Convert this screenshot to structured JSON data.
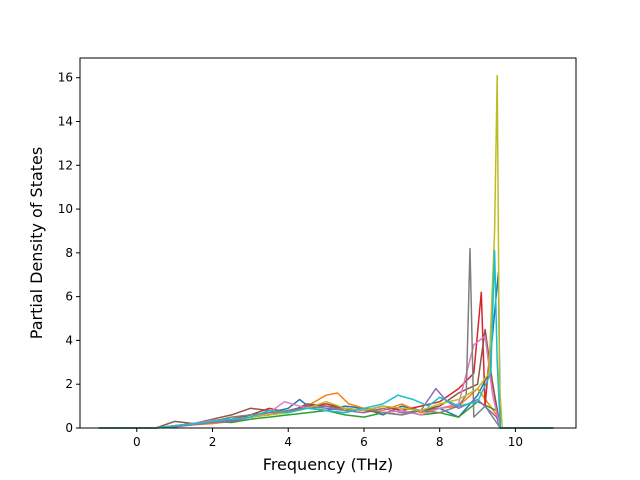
{
  "chart_data": {
    "type": "line",
    "title": "",
    "xlabel": "Frequency (THz)",
    "ylabel": "Partial Density of States",
    "xlim": [
      -1.5,
      11.6
    ],
    "ylim": [
      0,
      16.9
    ],
    "xticks": [
      0,
      2,
      4,
      6,
      8,
      10
    ],
    "yticks": [
      0,
      2,
      4,
      6,
      8,
      10,
      12,
      14,
      16
    ],
    "grid": false,
    "legend": "none",
    "series": [
      {
        "color": "#1f77b4",
        "x": [
          -1,
          0.5,
          1,
          1.5,
          2,
          2.5,
          3,
          3.5,
          4,
          4.3,
          4.6,
          5,
          5.5,
          6,
          6.5,
          7,
          7.5,
          8,
          8.5,
          9,
          9.3,
          9.55,
          9.6,
          11
        ],
        "y": [
          0,
          0,
          0.1,
          0.2,
          0.3,
          0.35,
          0.6,
          0.7,
          0.9,
          1.3,
          0.9,
          0.8,
          1.0,
          0.9,
          0.6,
          1.0,
          0.8,
          0.9,
          0.5,
          1.5,
          2.5,
          7.1,
          0,
          0
        ]
      },
      {
        "color": "#ff7f0e",
        "x": [
          -1,
          0.5,
          1,
          1.5,
          2,
          2.5,
          3,
          3.5,
          4,
          4.5,
          5,
          5.3,
          5.6,
          6,
          6.5,
          7,
          7.5,
          8,
          8.5,
          9,
          9.5,
          9.6,
          11
        ],
        "y": [
          0,
          0,
          0.1,
          0.15,
          0.2,
          0.3,
          0.5,
          0.6,
          0.8,
          1.0,
          1.5,
          1.6,
          1.1,
          0.9,
          0.8,
          1.1,
          0.7,
          0.9,
          1.0,
          1.8,
          0.6,
          0,
          0
        ]
      },
      {
        "color": "#2ca02c",
        "x": [
          -1,
          0.5,
          1,
          1.5,
          2,
          2.5,
          3,
          3.5,
          4,
          4.5,
          5,
          5.5,
          6,
          6.5,
          7,
          7.5,
          8,
          8.5,
          9,
          9.5,
          9.6,
          11
        ],
        "y": [
          0,
          0,
          0.05,
          0.2,
          0.3,
          0.25,
          0.4,
          0.5,
          0.6,
          0.7,
          0.8,
          0.6,
          0.5,
          0.7,
          0.8,
          0.6,
          0.7,
          0.5,
          1.2,
          0.8,
          0,
          0
        ]
      },
      {
        "color": "#d62728",
        "x": [
          -1,
          0.5,
          1,
          1.5,
          2,
          2.5,
          3,
          3.5,
          4,
          4.5,
          5,
          5.5,
          6,
          6.5,
          7,
          7.5,
          8,
          8.5,
          8.9,
          9.1,
          9.2,
          9.3,
          9.6,
          11
        ],
        "y": [
          0,
          0,
          0.1,
          0.2,
          0.3,
          0.4,
          0.6,
          0.9,
          0.7,
          1.0,
          1.1,
          0.9,
          0.8,
          1.0,
          0.8,
          1.0,
          1.2,
          1.8,
          2.5,
          6.2,
          1.0,
          3.0,
          0,
          0
        ]
      },
      {
        "color": "#9467bd",
        "x": [
          -1,
          0.5,
          1,
          1.5,
          2,
          2.5,
          3,
          3.5,
          4,
          4.5,
          5,
          5.5,
          6,
          6.5,
          7,
          7.5,
          7.9,
          8.2,
          8.5,
          9,
          9.5,
          9.6,
          11
        ],
        "y": [
          0,
          0,
          0.05,
          0.15,
          0.25,
          0.3,
          0.5,
          0.6,
          0.8,
          1.0,
          0.9,
          0.8,
          0.7,
          0.9,
          0.7,
          0.8,
          1.8,
          1.2,
          0.9,
          1.3,
          0.5,
          0,
          0
        ]
      },
      {
        "color": "#8c564b",
        "x": [
          -1,
          0.5,
          1,
          1.5,
          2,
          2.5,
          3,
          3.5,
          4,
          4.5,
          5,
          5.5,
          6,
          6.5,
          7,
          7.5,
          8,
          8.5,
          9,
          9.2,
          9.4,
          9.6,
          11
        ],
        "y": [
          0,
          0,
          0.3,
          0.2,
          0.4,
          0.6,
          0.9,
          0.8,
          0.7,
          1.1,
          1.0,
          0.9,
          0.8,
          0.7,
          0.6,
          0.8,
          1.0,
          1.6,
          2.0,
          4.5,
          2.0,
          0,
          0
        ]
      },
      {
        "color": "#e377c2",
        "x": [
          -1,
          0.5,
          1,
          1.5,
          2,
          2.5,
          3,
          3.5,
          3.9,
          4.5,
          5,
          5.5,
          6,
          6.5,
          7,
          7.5,
          8,
          8.5,
          8.9,
          9.2,
          9.4,
          9.6,
          11
        ],
        "y": [
          0,
          0,
          0.1,
          0.2,
          0.35,
          0.4,
          0.5,
          0.7,
          1.2,
          0.9,
          1.0,
          0.8,
          0.9,
          0.7,
          0.8,
          0.6,
          0.9,
          1.1,
          3.8,
          4.2,
          1.5,
          0,
          0
        ]
      },
      {
        "color": "#7f7f7f",
        "x": [
          -1,
          0.5,
          1,
          1.5,
          2,
          2.5,
          3,
          3.5,
          4,
          4.5,
          5,
          5.5,
          6,
          6.5,
          7,
          7.5,
          8,
          8.5,
          8.7,
          8.8,
          8.9,
          9.2,
          9.6,
          11
        ],
        "y": [
          0,
          0,
          0.1,
          0.2,
          0.3,
          0.5,
          0.6,
          0.7,
          0.8,
          0.9,
          1.0,
          0.8,
          0.9,
          0.7,
          0.6,
          0.8,
          0.7,
          1.0,
          1.5,
          8.2,
          0.5,
          1.0,
          0,
          0
        ]
      },
      {
        "color": "#bcbd22",
        "x": [
          -1,
          0.5,
          1,
          1.5,
          2,
          2.5,
          3,
          3.5,
          4,
          4.5,
          5,
          5.5,
          6,
          6.5,
          7,
          7.5,
          8,
          8.5,
          9,
          9.3,
          9.45,
          9.52,
          9.58,
          9.65,
          11
        ],
        "y": [
          0,
          0,
          0.1,
          0.2,
          0.3,
          0.4,
          0.5,
          0.6,
          0.7,
          0.9,
          1.2,
          0.9,
          0.8,
          1.0,
          0.9,
          0.8,
          1.1,
          1.3,
          1.8,
          2.5,
          9.0,
          16.1,
          2.0,
          0,
          0
        ]
      },
      {
        "color": "#17becf",
        "x": [
          -1,
          0.5,
          1,
          1.5,
          2,
          2.5,
          3,
          3.5,
          4,
          4.5,
          5,
          5.5,
          6,
          6.5,
          6.9,
          7.3,
          7.7,
          8,
          8.5,
          9,
          9.35,
          9.45,
          9.52,
          9.6,
          11
        ],
        "y": [
          0,
          0,
          0.1,
          0.2,
          0.3,
          0.4,
          0.5,
          0.8,
          0.7,
          0.9,
          0.8,
          0.7,
          0.9,
          1.1,
          1.5,
          1.3,
          1.0,
          1.4,
          1.0,
          1.2,
          2.5,
          8.1,
          3.0,
          0,
          0
        ]
      }
    ]
  }
}
